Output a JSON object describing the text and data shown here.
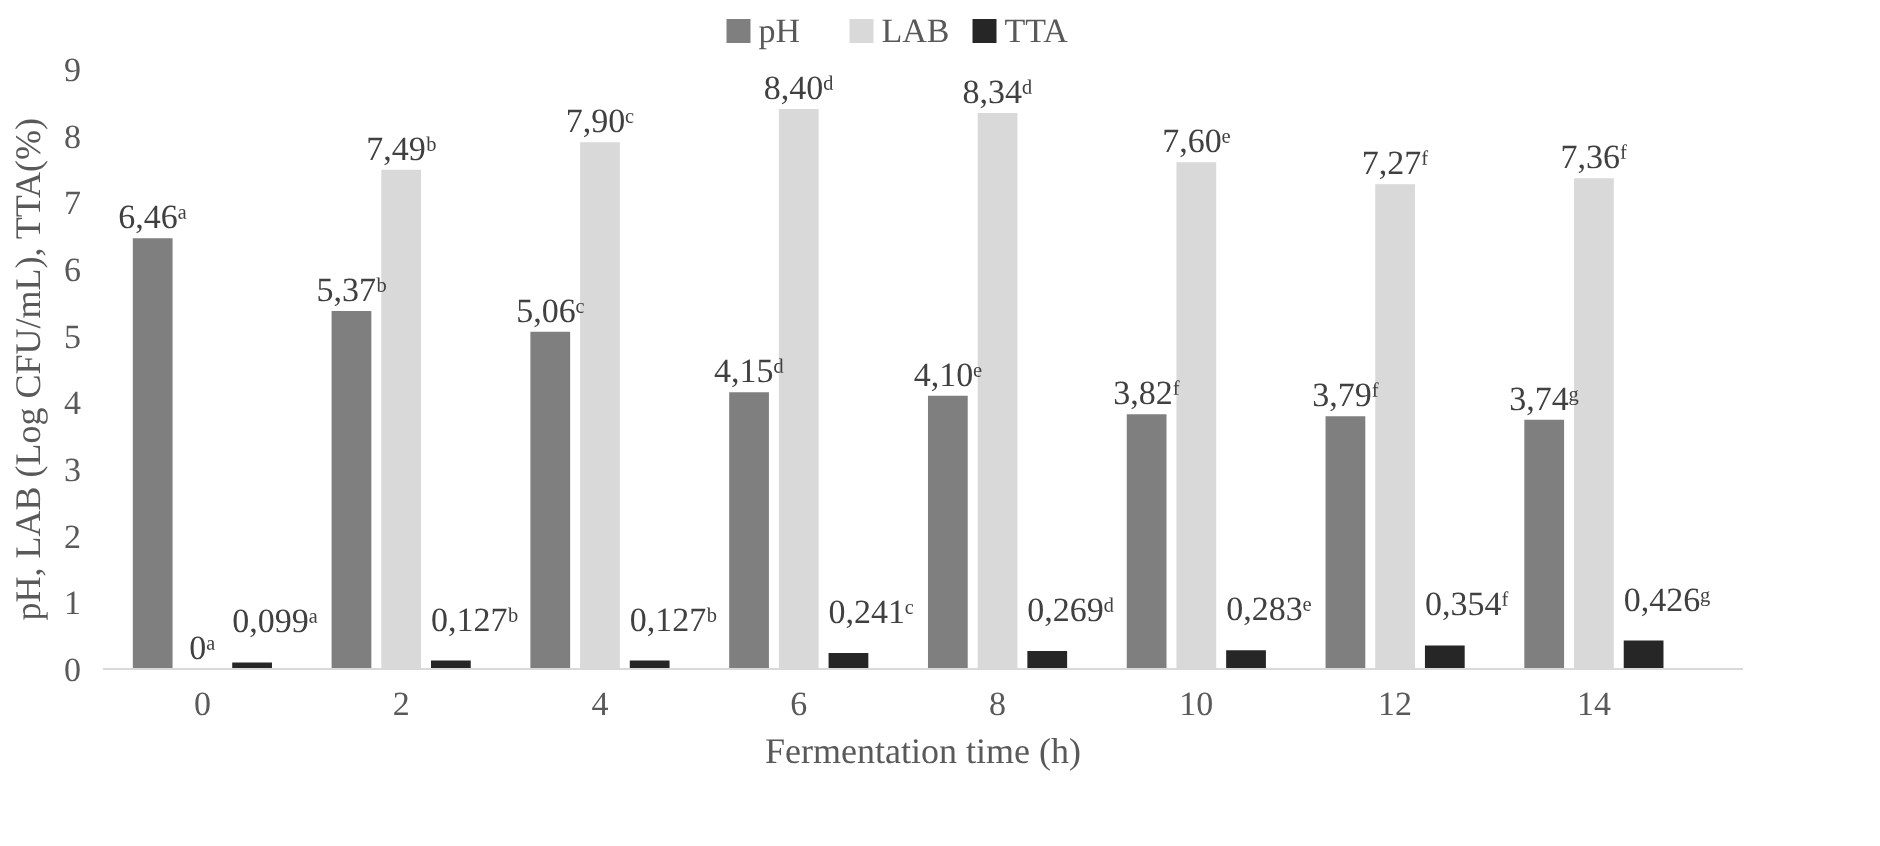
{
  "chart_data": {
    "type": "bar",
    "xlabel": "Fermentation time (h)",
    "ylabel": "pH, LAB (Log CFU/mL), TTA(%)",
    "categories": [
      "0",
      "2",
      "4",
      "6",
      "8",
      "10",
      "12",
      "14"
    ],
    "ylim": [
      0,
      9
    ],
    "yticks": [
      0,
      1,
      2,
      3,
      4,
      5,
      6,
      7,
      8,
      9
    ],
    "grid": false,
    "legend": "top",
    "series": [
      {
        "name": "pH",
        "color": "#7f7f7f",
        "values": [
          6.46,
          5.37,
          5.06,
          4.15,
          4.1,
          3.82,
          3.79,
          3.74
        ],
        "value_labels": [
          "6,46ᵃ",
          "5,37ᵇ",
          "5,06ᶜ",
          "4,15ᵈ",
          "4,10ᵉ",
          "3,82ᶠ",
          "3,79ᶠ",
          "3,74ᵍ"
        ]
      },
      {
        "name": "LAB",
        "color": "#d9d9d9",
        "values": [
          0,
          7.49,
          7.9,
          8.4,
          8.34,
          7.6,
          7.27,
          7.36
        ],
        "value_labels": [
          "0ᵃ",
          "7,49ᵇ",
          "7,90ᶜ",
          "8,40ᵈ",
          "8,34ᵈ",
          "7,60ᵉ",
          "7,27ᶠ",
          "7,36ᶠ"
        ]
      },
      {
        "name": "TTA",
        "color": "#262626",
        "values": [
          0.099,
          0.127,
          0.127,
          0.241,
          0.269,
          0.283,
          0.354,
          0.426
        ],
        "value_labels": [
          "0,099ᵃ",
          "0,127ᵇ",
          "0,127ᵇ",
          "0,241ᶜ",
          "0,269ᵈ",
          "0,283ᵉ",
          "0,354ᶠ",
          "0,426ᵍ"
        ]
      }
    ]
  }
}
